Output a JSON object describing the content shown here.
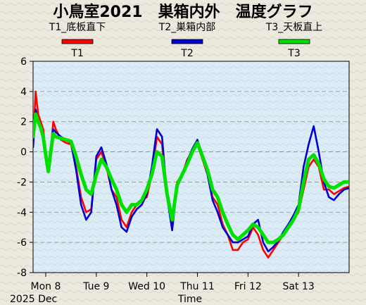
{
  "chart_data": {
    "type": "line",
    "title": "小鳥室2021　巣箱内外　温度グラフ",
    "xlabel": "Time",
    "date_label": "2025 Dec",
    "ylabel": "",
    "ylim": [
      -8,
      6
    ],
    "yticks": [
      6,
      4,
      2,
      0,
      -2,
      -4,
      -6,
      -8
    ],
    "xlim": [
      7.75,
      14.0
    ],
    "xticks": [
      {
        "x": 8,
        "label": "Mon 8"
      },
      {
        "x": 9,
        "label": "Tue 9"
      },
      {
        "x": 10,
        "label": "Wed 10"
      },
      {
        "x": 11,
        "label": "Thu 11"
      },
      {
        "x": 12,
        "label": "Fri 12"
      },
      {
        "x": 13,
        "label": "Sat 13"
      }
    ],
    "grid": true,
    "legend_position": "top",
    "series": [
      {
        "name": "T1",
        "subtitle": "T1_底板直下",
        "color": "#ff0000",
        "x": [
          7.75,
          7.8,
          7.85,
          7.9,
          7.95,
          8.0,
          8.05,
          8.1,
          8.15,
          8.2,
          8.3,
          8.4,
          8.5,
          8.6,
          8.7,
          8.8,
          8.9,
          9.0,
          9.1,
          9.2,
          9.3,
          9.4,
          9.5,
          9.6,
          9.7,
          9.8,
          9.9,
          10.0,
          10.1,
          10.2,
          10.3,
          10.4,
          10.5,
          10.6,
          10.7,
          10.8,
          10.9,
          11.0,
          11.1,
          11.2,
          11.3,
          11.4,
          11.5,
          11.6,
          11.7,
          11.8,
          11.9,
          12.0,
          12.1,
          12.2,
          12.3,
          12.4,
          12.5,
          12.6,
          12.7,
          12.8,
          12.9,
          13.0,
          13.1,
          13.2,
          13.3,
          13.4,
          13.5,
          13.6,
          13.7,
          13.8,
          13.9,
          14.0
        ],
        "values": [
          0.5,
          4.0,
          2.5,
          2.0,
          1.5,
          0.0,
          -1.0,
          0.2,
          2.0,
          1.5,
          0.8,
          0.6,
          0.5,
          -1.0,
          -3.0,
          -4.0,
          -3.8,
          -0.5,
          0.0,
          -1.0,
          -2.5,
          -3.0,
          -4.5,
          -5.0,
          -4.0,
          -3.5,
          -3.2,
          -3.0,
          -1.5,
          1.0,
          0.5,
          -3.0,
          -5.0,
          -2.0,
          -1.5,
          -0.5,
          0.0,
          0.5,
          -0.5,
          -1.5,
          -3.0,
          -3.5,
          -4.8,
          -5.5,
          -6.5,
          -6.5,
          -6.0,
          -5.8,
          -5.0,
          -5.5,
          -6.5,
          -7.0,
          -6.5,
          -6.0,
          -5.5,
          -5.0,
          -4.5,
          -4.0,
          -2.5,
          -1.0,
          -0.5,
          -1.0,
          -2.5,
          -2.5,
          -2.8,
          -2.6,
          -2.4,
          -2.3
        ]
      },
      {
        "name": "T2",
        "subtitle": "T2_巣箱内部",
        "color": "#0000d0",
        "x": [
          7.75,
          7.8,
          7.85,
          7.9,
          7.95,
          8.0,
          8.05,
          8.1,
          8.15,
          8.2,
          8.3,
          8.4,
          8.5,
          8.6,
          8.7,
          8.8,
          8.9,
          9.0,
          9.1,
          9.2,
          9.3,
          9.4,
          9.5,
          9.6,
          9.7,
          9.8,
          9.9,
          10.0,
          10.1,
          10.2,
          10.3,
          10.4,
          10.5,
          10.6,
          10.7,
          10.8,
          10.9,
          11.0,
          11.1,
          11.2,
          11.3,
          11.4,
          11.5,
          11.6,
          11.7,
          11.8,
          11.9,
          12.0,
          12.1,
          12.2,
          12.3,
          12.4,
          12.5,
          12.6,
          12.7,
          12.8,
          12.9,
          13.0,
          13.1,
          13.2,
          13.3,
          13.4,
          13.5,
          13.6,
          13.7,
          13.8,
          13.9,
          14.0
        ],
        "values": [
          0.3,
          2.8,
          2.0,
          1.5,
          1.0,
          -0.3,
          -1.2,
          0.3,
          1.5,
          1.3,
          1.0,
          0.8,
          0.6,
          -1.2,
          -3.5,
          -4.5,
          -4.0,
          -0.3,
          0.3,
          -0.8,
          -2.5,
          -3.5,
          -5.0,
          -5.3,
          -4.3,
          -3.8,
          -3.5,
          -2.8,
          -1.0,
          1.5,
          1.0,
          -3.0,
          -5.2,
          -2.2,
          -1.5,
          -0.6,
          0.2,
          0.8,
          -0.3,
          -1.5,
          -3.2,
          -4.0,
          -5.0,
          -5.5,
          -6.0,
          -6.0,
          -5.8,
          -5.6,
          -4.8,
          -4.5,
          -6.0,
          -6.6,
          -6.3,
          -5.9,
          -5.3,
          -4.8,
          -4.2,
          -3.5,
          -1.0,
          0.5,
          1.7,
          0.0,
          -2.0,
          -3.0,
          -3.2,
          -2.8,
          -2.5,
          -2.4
        ]
      },
      {
        "name": "T3",
        "subtitle": "T3_天板直上",
        "color": "#00e000",
        "x": [
          7.75,
          7.8,
          7.85,
          7.9,
          7.95,
          8.0,
          8.05,
          8.1,
          8.15,
          8.2,
          8.3,
          8.4,
          8.5,
          8.6,
          8.7,
          8.8,
          8.9,
          9.0,
          9.1,
          9.2,
          9.3,
          9.4,
          9.5,
          9.6,
          9.7,
          9.8,
          9.9,
          10.0,
          10.1,
          10.2,
          10.3,
          10.4,
          10.5,
          10.6,
          10.7,
          10.8,
          10.9,
          11.0,
          11.1,
          11.2,
          11.3,
          11.4,
          11.5,
          11.6,
          11.7,
          11.8,
          11.9,
          12.0,
          12.1,
          12.2,
          12.3,
          12.4,
          12.5,
          12.6,
          12.7,
          12.8,
          12.9,
          13.0,
          13.1,
          13.2,
          13.3,
          13.4,
          13.5,
          13.6,
          13.7,
          13.8,
          13.9,
          14.0
        ],
        "values": [
          1.0,
          2.5,
          2.0,
          1.6,
          1.0,
          -0.2,
          -1.3,
          0.0,
          1.2,
          1.0,
          0.9,
          0.8,
          0.7,
          -0.3,
          -1.5,
          -2.5,
          -2.8,
          -1.5,
          -0.5,
          -1.0,
          -1.8,
          -2.5,
          -3.5,
          -4.0,
          -3.5,
          -3.5,
          -3.2,
          -2.5,
          -1.5,
          0.0,
          -0.3,
          -2.8,
          -4.5,
          -2.2,
          -1.5,
          -0.8,
          0.0,
          0.6,
          -0.3,
          -1.2,
          -2.5,
          -3.0,
          -4.0,
          -4.8,
          -5.5,
          -5.8,
          -5.5,
          -5.2,
          -4.8,
          -5.0,
          -5.5,
          -6.0,
          -6.0,
          -5.8,
          -5.5,
          -5.0,
          -4.5,
          -3.8,
          -2.0,
          -0.5,
          -0.2,
          -0.8,
          -1.8,
          -2.3,
          -2.4,
          -2.2,
          -2.0,
          -2.0
        ]
      }
    ]
  }
}
